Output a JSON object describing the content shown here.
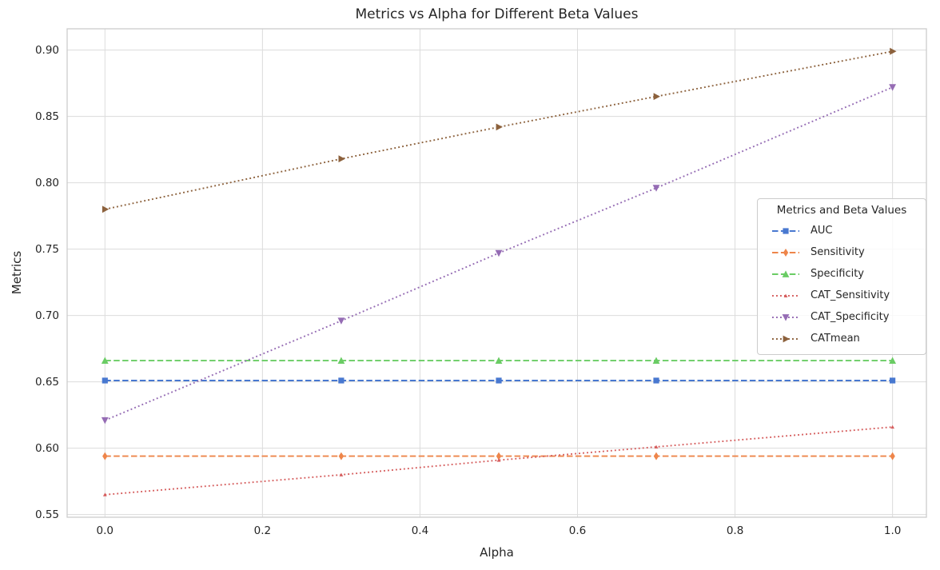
{
  "chart_data": {
    "type": "line",
    "title": "Metrics vs Alpha for Different Beta Values",
    "xlabel": "Alpha",
    "ylabel": "Metrics",
    "grid": true,
    "background": "#ffffff",
    "grid_color": "#dcdcdc",
    "spine_color": "#cccccc",
    "text_color": "#262626",
    "x": [
      0.0,
      0.3,
      0.5,
      0.7,
      1.0
    ],
    "xticks": [
      0.0,
      0.2,
      0.4,
      0.6,
      0.8,
      1.0
    ],
    "yticks": [
      0.55,
      0.6,
      0.65,
      0.7,
      0.75,
      0.8,
      0.85,
      0.9
    ],
    "xlim": [
      -0.048,
      1.043
    ],
    "ylim": [
      0.548,
      0.916
    ],
    "legend": {
      "title": "Metrics and Beta Values",
      "position": "center-right"
    },
    "series": [
      {
        "name": "AUC",
        "color": "#4878d0",
        "linestyle": "dashed",
        "marker": "square",
        "values": [
          0.651,
          0.651,
          0.651,
          0.651,
          0.651
        ]
      },
      {
        "name": "Sensitivity",
        "color": "#ee854a",
        "linestyle": "dashed",
        "marker": "diamond",
        "values": [
          0.594,
          0.594,
          0.594,
          0.594,
          0.594
        ]
      },
      {
        "name": "Specificity",
        "color": "#6acc64",
        "linestyle": "dashed",
        "marker": "triangle-up",
        "values": [
          0.666,
          0.666,
          0.666,
          0.666,
          0.666
        ]
      },
      {
        "name": "CAT_Sensitivity",
        "color": "#d65f5f",
        "linestyle": "dotted",
        "marker": "triangle-up-small",
        "values": [
          0.565,
          0.58,
          0.591,
          0.601,
          0.616
        ]
      },
      {
        "name": "CAT_Specificity",
        "color": "#956cb4",
        "linestyle": "dotted",
        "marker": "triangle-down",
        "values": [
          0.621,
          0.696,
          0.747,
          0.796,
          0.872
        ]
      },
      {
        "name": "CATmean",
        "color": "#8c613c",
        "linestyle": "dotted",
        "marker": "triangle-right",
        "values": [
          0.78,
          0.818,
          0.842,
          0.865,
          0.899
        ]
      }
    ]
  }
}
